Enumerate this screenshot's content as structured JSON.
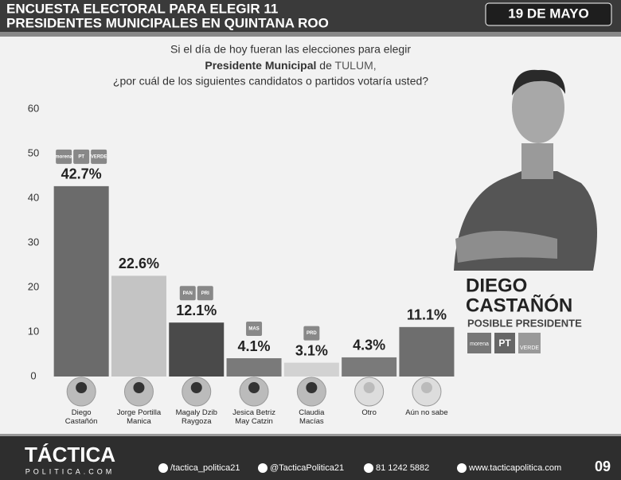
{
  "header": {
    "title_line1": "ENCUESTA ELECTORAL PARA ELEGIR 11",
    "title_line2": "PRESIDENTES MUNICIPALES EN QUINTANA ROO",
    "date": "19 DE MAYO"
  },
  "question": {
    "line1": "Si el día de hoy fueran las elecciones para elegir",
    "line2_bold": "Presidente Municipal",
    "line2_mid": "de",
    "line2_place": "TULUM,",
    "line3": "¿por cuál de los siguientes candidatos o partidos votaría usted?"
  },
  "candidate": {
    "name_line1": "DIEGO",
    "name_line2": "CASTAÑÓN",
    "subtitle": "POSIBLE PRESIDENTE",
    "parties": [
      "morena",
      "PT",
      "VERDE"
    ]
  },
  "party_logos": [
    [
      "morena",
      "PT",
      "VERDE"
    ],
    [],
    [
      "PAN",
      "PRI"
    ],
    [
      "MAS"
    ],
    [
      "PRD"
    ],
    [],
    []
  ],
  "chart_data": {
    "type": "bar",
    "categories": [
      "Diego Castañón",
      "Jorge Portilla Manica",
      "Magaly Dzib Raygoza",
      "Jesica Betriz May Catzin",
      "Claudia Macías",
      "Otro",
      "Aún no sabe"
    ],
    "values": [
      42.7,
      22.6,
      12.1,
      4.1,
      3.1,
      4.3,
      11.1
    ],
    "value_labels": [
      "42.7%",
      "22.6%",
      "12.1%",
      "4.1%",
      "3.1%",
      "4.3%",
      "11.1%"
    ],
    "colors": [
      "#6b6b6b",
      "#c4c4c4",
      "#4a4a4a",
      "#7a7a7a",
      "#d2d2d2",
      "#7a7a7a",
      "#6e6e6e"
    ],
    "ylim": [
      0,
      60
    ],
    "yticks": [
      0,
      10,
      20,
      30,
      40,
      50,
      60
    ],
    "grid": false
  },
  "footer": {
    "logo": "TÁCTICA",
    "logo_sub": "POLITICA.COM",
    "facebook": "/tactica_politica21",
    "twitter": "@TacticaPolitica21",
    "phone": "81 1242 5882",
    "web": "www.tacticapolitica.com",
    "page": "09"
  }
}
